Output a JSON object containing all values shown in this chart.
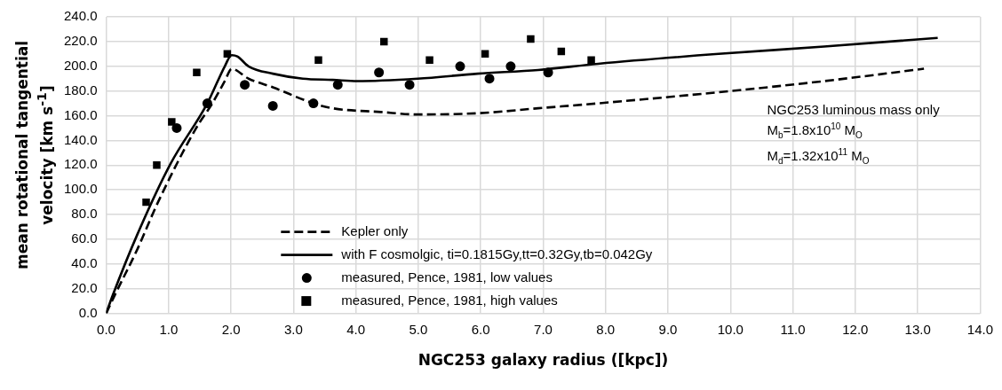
{
  "chart_data": {
    "type": "line",
    "xlabel": "NGC253 galaxy radius ([kpc])",
    "ylabel": "mean rotational tangential velocity [km s$^{-1}$]",
    "xlim": [
      0,
      14
    ],
    "xticks": [
      {
        "value": 0,
        "label": "0.0"
      },
      {
        "value": 1,
        "label": "1.0"
      },
      {
        "value": 2,
        "label": "2.0"
      },
      {
        "value": 3,
        "label": "3.0"
      },
      {
        "value": 4,
        "label": "4.0"
      },
      {
        "value": 5,
        "label": "5.0"
      },
      {
        "value": 6,
        "label": "6.0"
      },
      {
        "value": 7,
        "label": "7.0"
      },
      {
        "value": 8,
        "label": "8.0"
      },
      {
        "value": 9,
        "label": "9.0"
      },
      {
        "value": 10,
        "label": "10.0"
      },
      {
        "value": 11,
        "label": "11.0"
      },
      {
        "value": 12,
        "label": "12.0"
      },
      {
        "value": 13,
        "label": "13.0"
      },
      {
        "value": 14,
        "label": "14.0"
      }
    ],
    "ylim": [
      0,
      240
    ],
    "yticks": [
      {
        "value": 0,
        "label": "0.0"
      },
      {
        "value": 20,
        "label": "20.0"
      },
      {
        "value": 40,
        "label": "40.0"
      },
      {
        "value": 60,
        "label": "60.0"
      },
      {
        "value": 80,
        "label": "80.0"
      },
      {
        "value": 100,
        "label": "100.0"
      },
      {
        "value": 120,
        "label": "120.0"
      },
      {
        "value": 140,
        "label": "140.0"
      },
      {
        "value": 160,
        "label": "160.0"
      },
      {
        "value": 180,
        "label": "180.0"
      },
      {
        "value": 200,
        "label": "200.0"
      },
      {
        "value": 220,
        "label": "220.0"
      },
      {
        "value": 240,
        "label": "240.0"
      }
    ],
    "grid": true,
    "legend": "bottom",
    "annotations": [
      "NGC253 luminous mass only",
      "M$_{b}$=1.8x10$^{10}$ M$_{O}$",
      "M$_{d}$=1.32x10$^{11}$ M$_{O}$"
    ],
    "series": [
      {
        "name": "Kepler only",
        "type": "line",
        "line_style": "dashed",
        "marker": "none",
        "color": "#000000",
        "x": [
          0,
          0.13,
          0.5,
          0.83,
          1.43,
          1.7,
          1.9,
          2.01,
          2.28,
          2.67,
          3.32,
          3.63,
          4.4,
          4.99,
          5.95,
          6.92,
          7.88,
          9.81,
          11.5,
          13.1
        ],
        "values": [
          0,
          14,
          52,
          90,
          149,
          170,
          188,
          198,
          190,
          183,
          170,
          166,
          163,
          161,
          162,
          166,
          170,
          179,
          188,
          198
        ]
      },
      {
        "name": "with F cosmolgic, ti=0.1815Gy,tt=0.32Gy,tb=0.042Gy",
        "type": "line",
        "line_style": "solid",
        "marker": "none",
        "color": "#000000",
        "x": [
          0,
          0.1,
          0.5,
          1.03,
          1.62,
          1.9,
          2.01,
          2.1,
          2.28,
          2.67,
          3.15,
          3.63,
          4.02,
          4.99,
          5.95,
          6.92,
          7.88,
          9.81,
          11.5,
          13.32
        ],
        "values": [
          0,
          14,
          64,
          121,
          170,
          200,
          209,
          208,
          200,
          194,
          190,
          189,
          188,
          190,
          194,
          197,
          202,
          210,
          216,
          223
        ]
      },
      {
        "name": "measured, Pence, 1981, low values",
        "type": "scatter",
        "marker": "circle",
        "color": "#000000",
        "x": [
          1.13,
          1.62,
          2.22,
          2.67,
          3.32,
          3.71,
          4.37,
          4.86,
          5.67,
          6.14,
          6.48,
          7.08
        ],
        "values": [
          150,
          170,
          185,
          168,
          170,
          185,
          195,
          185,
          200,
          190,
          200,
          195
        ]
      },
      {
        "name": "measured, Pence, 1981, high values",
        "type": "scatter",
        "marker": "square",
        "color": "#000000",
        "x": [
          0.64,
          0.81,
          1.05,
          1.45,
          1.94,
          3.4,
          4.45,
          5.18,
          6.07,
          6.8,
          7.29,
          7.77
        ],
        "values": [
          90,
          120,
          155,
          195,
          210,
          205,
          220,
          205,
          210,
          222,
          212,
          205
        ]
      }
    ]
  }
}
